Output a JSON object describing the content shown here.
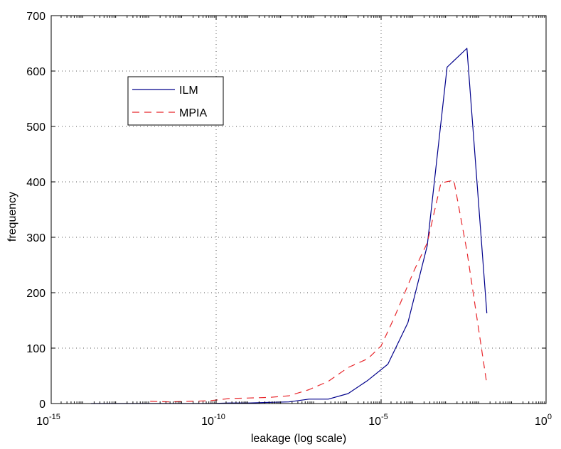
{
  "chart_data": {
    "type": "line",
    "xlabel": "leakage (log scale)",
    "ylabel": "frequency",
    "x_scale": "log",
    "xlim": [
      1e-15,
      1
    ],
    "ylim": [
      0,
      700
    ],
    "grid": true,
    "legend_position": "top-left",
    "x_ticks": [
      {
        "base": "10",
        "exp": "-15"
      },
      {
        "base": "10",
        "exp": "-10"
      },
      {
        "base": "10",
        "exp": "-5"
      },
      {
        "base": "10",
        "exp": "0"
      }
    ],
    "y_ticks": [
      "0",
      "100",
      "200",
      "300",
      "400",
      "500",
      "600",
      "700"
    ],
    "series": [
      {
        "name": "ILM",
        "color": "#00008b",
        "dash": "solid",
        "points": [
          [
            1.6e-14,
            0
          ],
          [
            6.5e-14,
            0
          ],
          [
            2.5e-13,
            0
          ],
          [
            1e-12,
            0
          ],
          [
            4e-12,
            0
          ],
          [
            1.6e-11,
            0
          ],
          [
            6.5e-11,
            0
          ],
          [
            2.5e-10,
            1
          ],
          [
            1e-09,
            1
          ],
          [
            4e-09,
            2
          ],
          [
            1.6e-08,
            3
          ],
          [
            6.5e-08,
            8
          ],
          [
            2.5e-07,
            8
          ],
          [
            1e-06,
            18
          ],
          [
            4e-06,
            42
          ],
          [
            1.6e-05,
            71
          ],
          [
            6.5e-05,
            146
          ],
          [
            0.00025,
            285
          ],
          [
            0.001,
            607
          ],
          [
            0.004,
            641
          ],
          [
            0.016,
            163
          ]
        ]
      },
      {
        "name": "MPIA",
        "color": "#e8262b",
        "dash": "dashed",
        "points": [
          [
            1e-12,
            4
          ],
          [
            4e-12,
            3
          ],
          [
            1.6e-11,
            4
          ],
          [
            6.5e-11,
            5
          ],
          [
            2.5e-10,
            9
          ],
          [
            1e-09,
            10
          ],
          [
            4e-09,
            11
          ],
          [
            1.6e-08,
            14
          ],
          [
            6.5e-08,
            25
          ],
          [
            2.5e-07,
            40
          ],
          [
            1e-06,
            65
          ],
          [
            4e-06,
            81
          ],
          [
            1e-05,
            104
          ],
          [
            2.5e-05,
            155
          ],
          [
            0.0001,
            240
          ],
          [
            0.00025,
            290
          ],
          [
            0.00065,
            398
          ],
          [
            0.0016,
            403
          ],
          [
            0.004,
            275
          ],
          [
            0.016,
            35
          ]
        ]
      }
    ]
  }
}
